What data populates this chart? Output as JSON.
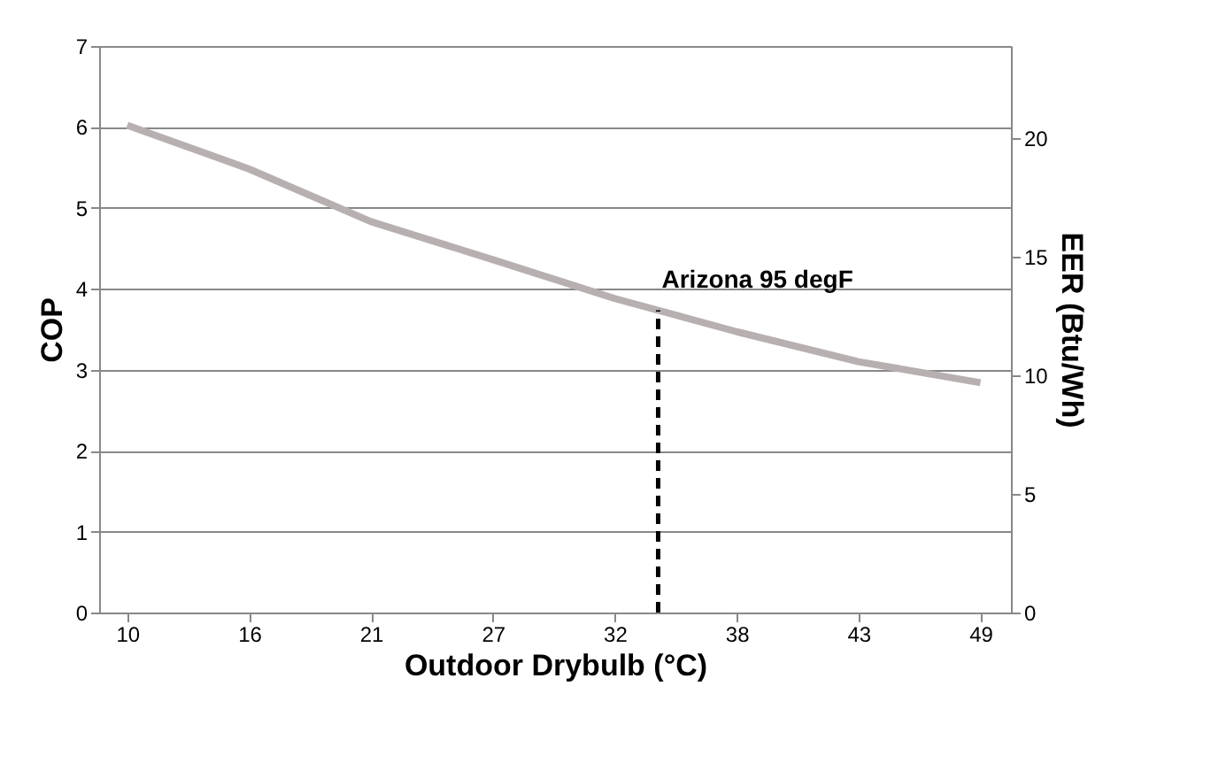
{
  "chart_data": {
    "type": "line",
    "xlabel": "Outdoor Drybulb (°C)",
    "ylabel": "COP",
    "y2label": "EER (Btu/Wh)",
    "x": [
      10,
      15.56,
      21.11,
      26.67,
      32.22,
      37.78,
      43.33,
      48.89
    ],
    "series": [
      {
        "color": "#b8b0b0",
        "values": [
          6.02,
          5.48,
          4.83,
          4.36,
          3.88,
          3.47,
          3.1,
          2.84
        ]
      }
    ],
    "xlim": [
      8.72,
      50.28
    ],
    "xticks": [
      10,
      {
        "value": 15.56,
        "label": "16"
      },
      {
        "value": 21.11,
        "label": "21"
      },
      {
        "value": 26.67,
        "label": "27"
      },
      {
        "value": 32.22,
        "label": "32"
      },
      {
        "value": 37.78,
        "label": "38"
      },
      {
        "value": 43.33,
        "label": "43"
      },
      {
        "value": 48.89,
        "label": "49"
      }
    ],
    "ylim": [
      0,
      7
    ],
    "yticks": [
      0,
      1,
      2,
      3,
      4,
      5,
      6,
      7
    ],
    "y2lim": [
      0,
      23.9
    ],
    "y2ticks": [
      0,
      5,
      10,
      15,
      20
    ],
    "ref_lines": [
      {
        "axis": "x",
        "value": 34.2,
        "label": "Arizona 95 degF",
        "color": "#000000",
        "line_style": "dashed"
      }
    ],
    "grid": "y",
    "marker": "none",
    "line_style": "solid"
  }
}
